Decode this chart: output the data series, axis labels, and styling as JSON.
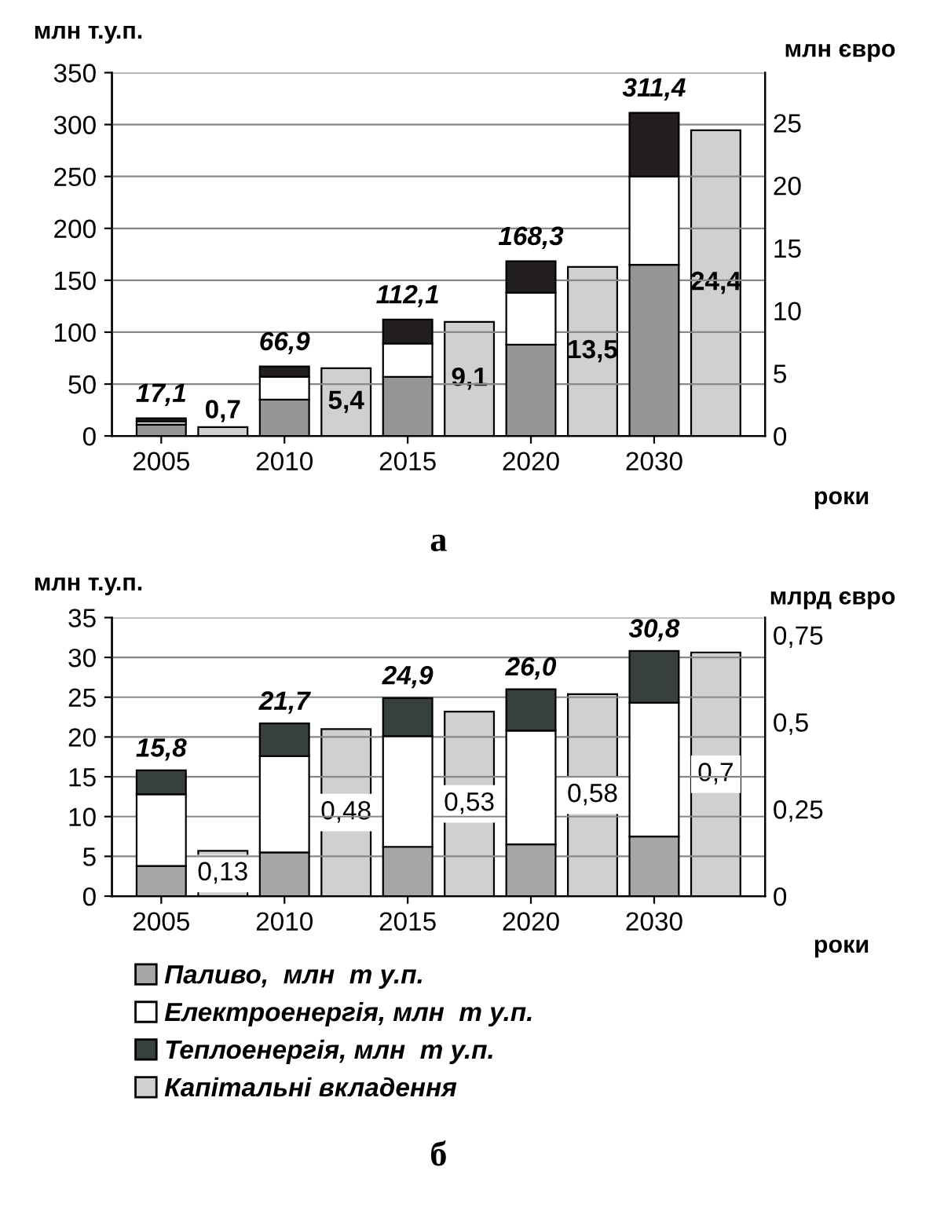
{
  "chart_data": [
    {
      "type": "bar",
      "stacked": true,
      "categories": [
        "2005",
        "2010",
        "2015",
        "2020",
        "2030"
      ],
      "xlabel": "роки",
      "ylabel": "млн т.у.п.",
      "y2label": "млн євро",
      "ylim": [
        0,
        350
      ],
      "yticks": [
        0,
        50,
        100,
        150,
        200,
        250,
        300,
        350
      ],
      "y2lim": [
        0,
        29
      ],
      "y2ticks": [
        0,
        5,
        10,
        15,
        20,
        25
      ],
      "grid": "y",
      "legend": false,
      "series": [
        {
          "color": "#969696",
          "values": [
            11,
            35,
            57,
            88,
            165
          ]
        },
        {
          "color": "#ffffff",
          "values": [
            3,
            22,
            32,
            50,
            85
          ]
        },
        {
          "color": "#231f20",
          "values": [
            3.1,
            9.9,
            23.1,
            30.3,
            61.4
          ]
        },
        {
          "type": "bar",
          "axis": "y2",
          "color": "#d0d0d0",
          "values": [
            0.7,
            5.4,
            9.1,
            13.5,
            24.4
          ],
          "value_labels": [
            "0,7",
            "5,4",
            "9,1",
            "13,5",
            "24,4"
          ]
        }
      ],
      "totals": [
        "17,1",
        "66,9",
        "112,1",
        "168,3",
        "311,4"
      ],
      "annotations": [
        "а"
      ]
    },
    {
      "type": "bar",
      "stacked": true,
      "categories": [
        "2005",
        "2010",
        "2015",
        "2020",
        "2030"
      ],
      "xlabel": "роки",
      "ylabel": "млн т.у.п.",
      "y2label": "млрд євро",
      "ylim": [
        0,
        35
      ],
      "yticks": [
        0,
        5,
        10,
        15,
        20,
        25,
        30,
        35
      ],
      "y2lim": [
        0,
        0.8
      ],
      "y2ticks": [
        0,
        {
          "value": 0.25,
          "label": "0,25"
        },
        {
          "value": 0.5,
          "label": "0,5"
        },
        {
          "value": 0.75,
          "label": "0,75"
        }
      ],
      "grid": "y",
      "legend": "bottom",
      "series": [
        {
          "name": "Паливо,  млн  т у.п.",
          "color": "#a6a6a6",
          "values": [
            3.8,
            5.5,
            6.2,
            6.5,
            7.5
          ]
        },
        {
          "name": "Електроенергія, млн  т у.п.",
          "color": "#ffffff",
          "values": [
            9.0,
            12.1,
            13.9,
            14.3,
            16.8
          ]
        },
        {
          "name": "Теплоенергія, млн  т у.п.",
          "color": "#383f3f",
          "values": [
            3.0,
            4.1,
            4.8,
            5.2,
            6.5
          ]
        },
        {
          "name": "Капітальні вкладення",
          "type": "bar",
          "axis": "y2",
          "color": "#d0d0d0",
          "values": [
            0.13,
            0.48,
            0.53,
            0.58,
            0.7
          ],
          "value_labels": [
            "0,13",
            "0,48",
            "0,53",
            "0,58",
            "0,7"
          ]
        }
      ],
      "totals": [
        "15,8",
        "21,7",
        "24,9",
        "26,0",
        "30,8"
      ],
      "annotations": [
        "б"
      ]
    }
  ]
}
